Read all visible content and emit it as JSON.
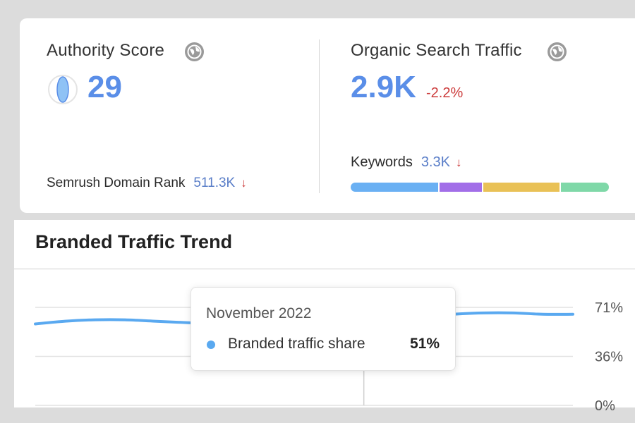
{
  "authority": {
    "title": "Authority Score",
    "score": "29",
    "rank_label": "Semrush Domain Rank",
    "rank_value": "511.3K",
    "rank_trend": "↓"
  },
  "organic": {
    "title": "Organic Search Traffic",
    "value": "2.9K",
    "change": "-2.2%",
    "keywords_label": "Keywords",
    "keywords_value": "3.3K",
    "keywords_trend": "↓",
    "keyword_distribution": [
      {
        "color": "#6ab0f3",
        "share": 0.345
      },
      {
        "color": "#a26ee8",
        "share": 0.17
      },
      {
        "color": "#e9c156",
        "share": 0.3
      },
      {
        "color": "#7fd8a8",
        "share": 0.185
      }
    ]
  },
  "branded": {
    "title": "Branded Traffic Trend",
    "tooltip": {
      "date": "November 2022",
      "series_label": "Branded traffic share",
      "value": "51%"
    }
  },
  "colors": {
    "accent": "#5a8ee8",
    "negative": "#cc3b3b",
    "series": "#5aa9f0"
  },
  "chart_data": {
    "type": "line",
    "title": "Branded Traffic Trend",
    "ytick_labels": [
      "71%",
      "36%",
      "0%"
    ],
    "ylim": [
      0,
      71
    ],
    "grid": true,
    "legend": "tooltip",
    "series": [
      {
        "name": "Branded traffic share",
        "color": "#5aa9f0",
        "values": [
          59,
          61,
          62,
          62,
          61,
          60,
          59,
          58,
          56,
          54,
          53,
          51,
          58,
          63,
          66,
          67,
          67,
          66,
          66
        ]
      }
    ],
    "highlight_index": 11,
    "highlight_label": "November 2022"
  }
}
